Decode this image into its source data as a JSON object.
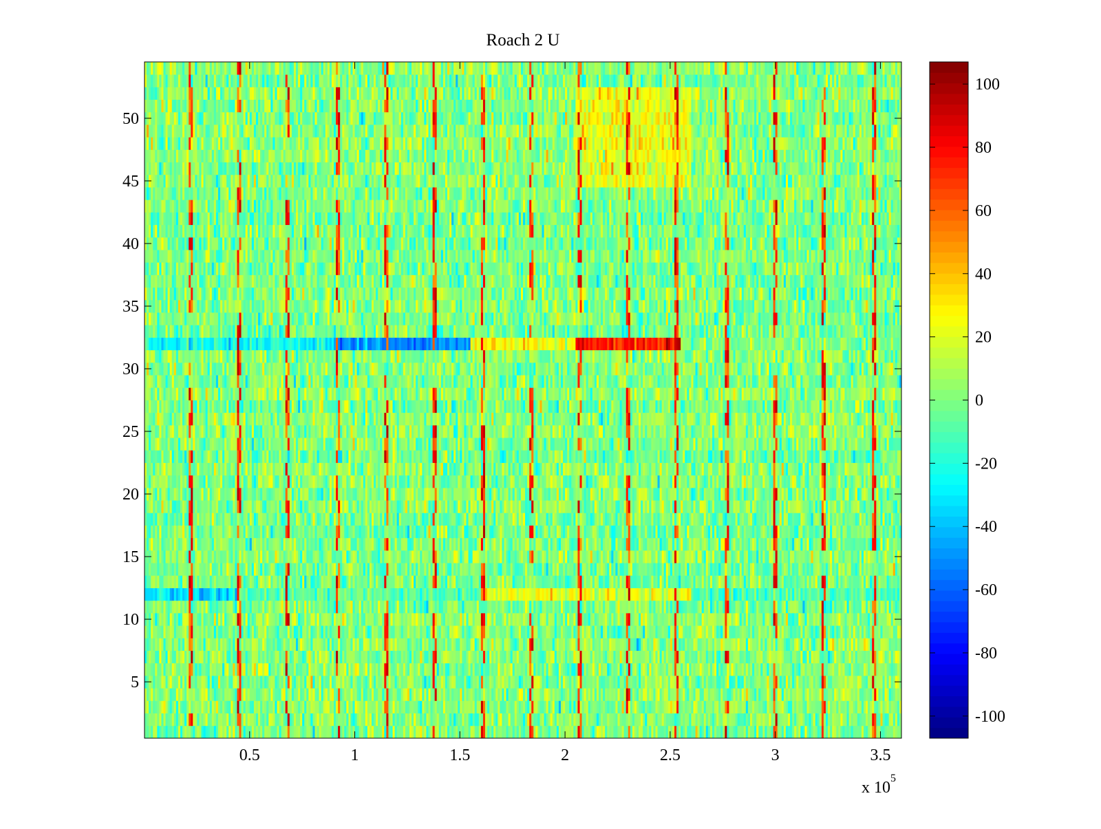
{
  "chart_data": {
    "type": "heatmap",
    "title": "Roach 2 U",
    "xlabel": "",
    "ylabel": "",
    "x_exponent_label": {
      "base": "x 10",
      "exponent": "5"
    },
    "xlim": [
      0,
      3.6
    ],
    "ylim": [
      0.5,
      54.5
    ],
    "x_ticks": [
      0.5,
      1,
      1.5,
      2,
      2.5,
      3,
      3.5
    ],
    "x_tick_labels": [
      "0.5",
      "1",
      "1.5",
      "2",
      "2.5",
      "3",
      "3.5"
    ],
    "y_ticks": [
      5,
      10,
      15,
      20,
      25,
      30,
      35,
      40,
      45,
      50
    ],
    "y_tick_labels": [
      "5",
      "10",
      "15",
      "20",
      "25",
      "30",
      "35",
      "40",
      "45",
      "50"
    ],
    "colormap": "jet",
    "colorbar": {
      "range": [
        -107,
        107
      ],
      "ticks": [
        -100,
        -80,
        -60,
        -40,
        -20,
        0,
        20,
        40,
        60,
        80,
        100
      ],
      "tick_labels": [
        "-100",
        "-80",
        "-60",
        "-40",
        "-20",
        "0",
        "20",
        "40",
        "60",
        "80",
        "100"
      ]
    },
    "grid": false,
    "rows": 54,
    "columns": 360,
    "features": {
      "row_32_profile": [
        {
          "x_range": [
            0.0,
            0.9
          ],
          "value": -25
        },
        {
          "x_range": [
            0.9,
            1.55
          ],
          "value": -50
        },
        {
          "x_range": [
            1.55,
            2.05
          ],
          "value": 25
        },
        {
          "x_range": [
            2.05,
            2.55
          ],
          "value": 75
        },
        {
          "x_range": [
            2.55,
            3.6
          ],
          "value": 0
        }
      ],
      "row_12_profile": [
        {
          "x_range": [
            0.0,
            0.45
          ],
          "value": -42
        },
        {
          "x_range": [
            0.45,
            1.6
          ],
          "value": -10
        },
        {
          "x_range": [
            1.6,
            2.6
          ],
          "value": 28
        },
        {
          "x_range": [
            2.6,
            3.6
          ],
          "value": -15
        }
      ],
      "warm_band_rows": [
        45,
        46,
        47,
        48,
        49,
        50,
        51,
        52
      ],
      "warm_band_x_range": [
        2.05,
        2.6
      ],
      "warm_band_value": 22,
      "periodic_spike_x": [
        0.22,
        0.45,
        0.68,
        0.92,
        1.15,
        1.38,
        1.61,
        1.84,
        2.07,
        2.3,
        2.53,
        2.77,
        3.0,
        3.23,
        3.47
      ],
      "spike_value": 80,
      "background_mean": 0,
      "background_std": 12
    }
  }
}
